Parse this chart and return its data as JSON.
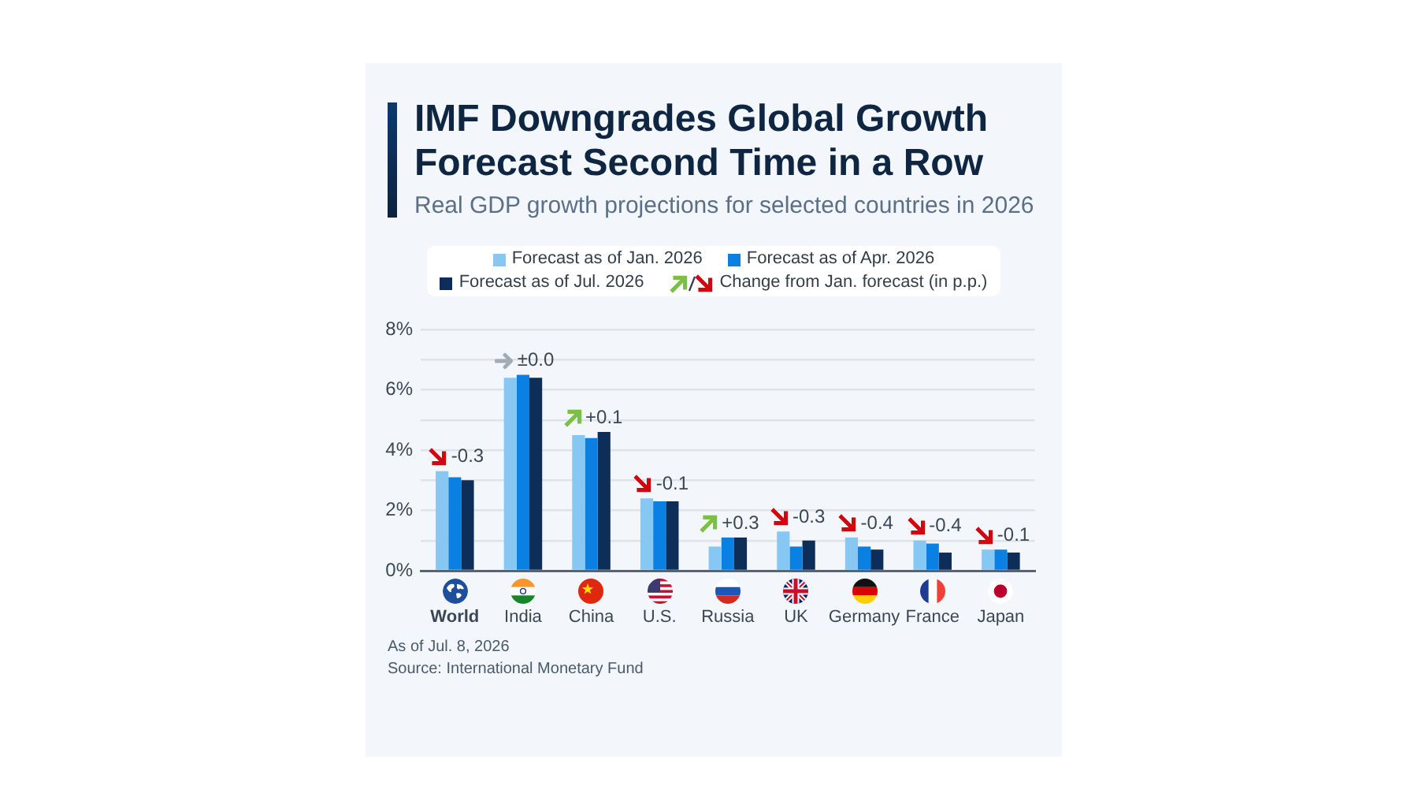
{
  "chart_data": {
    "type": "bar",
    "title": "IMF Downgrades Global Growth Forecast Second Time in a Row",
    "subtitle": "Real GDP growth projections for selected countries in 2026",
    "categories": [
      "World",
      "India",
      "China",
      "U.S.",
      "Russia",
      "UK",
      "Germany",
      "France",
      "Japan"
    ],
    "series": [
      {
        "name": "Forecast as of Jan. 2026",
        "color": "#87c7f4",
        "values": [
          3.3,
          6.4,
          4.5,
          2.4,
          0.8,
          1.3,
          1.1,
          1.0,
          0.7
        ]
      },
      {
        "name": "Forecast as of Apr. 2026",
        "color": "#0a80e2",
        "values": [
          3.1,
          6.5,
          4.4,
          2.3,
          1.1,
          0.8,
          0.8,
          0.9,
          0.7
        ]
      },
      {
        "name": "Forecast as of Jul. 2026",
        "color": "#0c2e58",
        "values": [
          3.0,
          6.4,
          4.6,
          2.3,
          1.1,
          1.0,
          0.7,
          0.6,
          0.6
        ]
      }
    ],
    "ylim": [
      0,
      8
    ],
    "yticks": [
      {
        "value": 0,
        "label": "0%"
      },
      {
        "value": 1,
        "label": null
      },
      {
        "value": 2,
        "label": "2%"
      },
      {
        "value": 3,
        "label": null
      },
      {
        "value": 4,
        "label": "4%"
      },
      {
        "value": 5,
        "label": null
      },
      {
        "value": 6,
        "label": "6%"
      },
      {
        "value": 7,
        "label": null
      },
      {
        "value": 8,
        "label": "8%"
      }
    ],
    "grid": "y",
    "legend": "top",
    "annotations": [
      "Change from Jan. forecast (in p.p.)",
      "-0.3",
      "±0.0",
      "+0.1",
      "-0.1",
      "+0.3",
      "-0.3",
      "-0.4",
      "-0.4",
      "-0.1",
      "As of Jul. 8, 2026",
      "Source: International Monetary Fund"
    ]
  }
}
